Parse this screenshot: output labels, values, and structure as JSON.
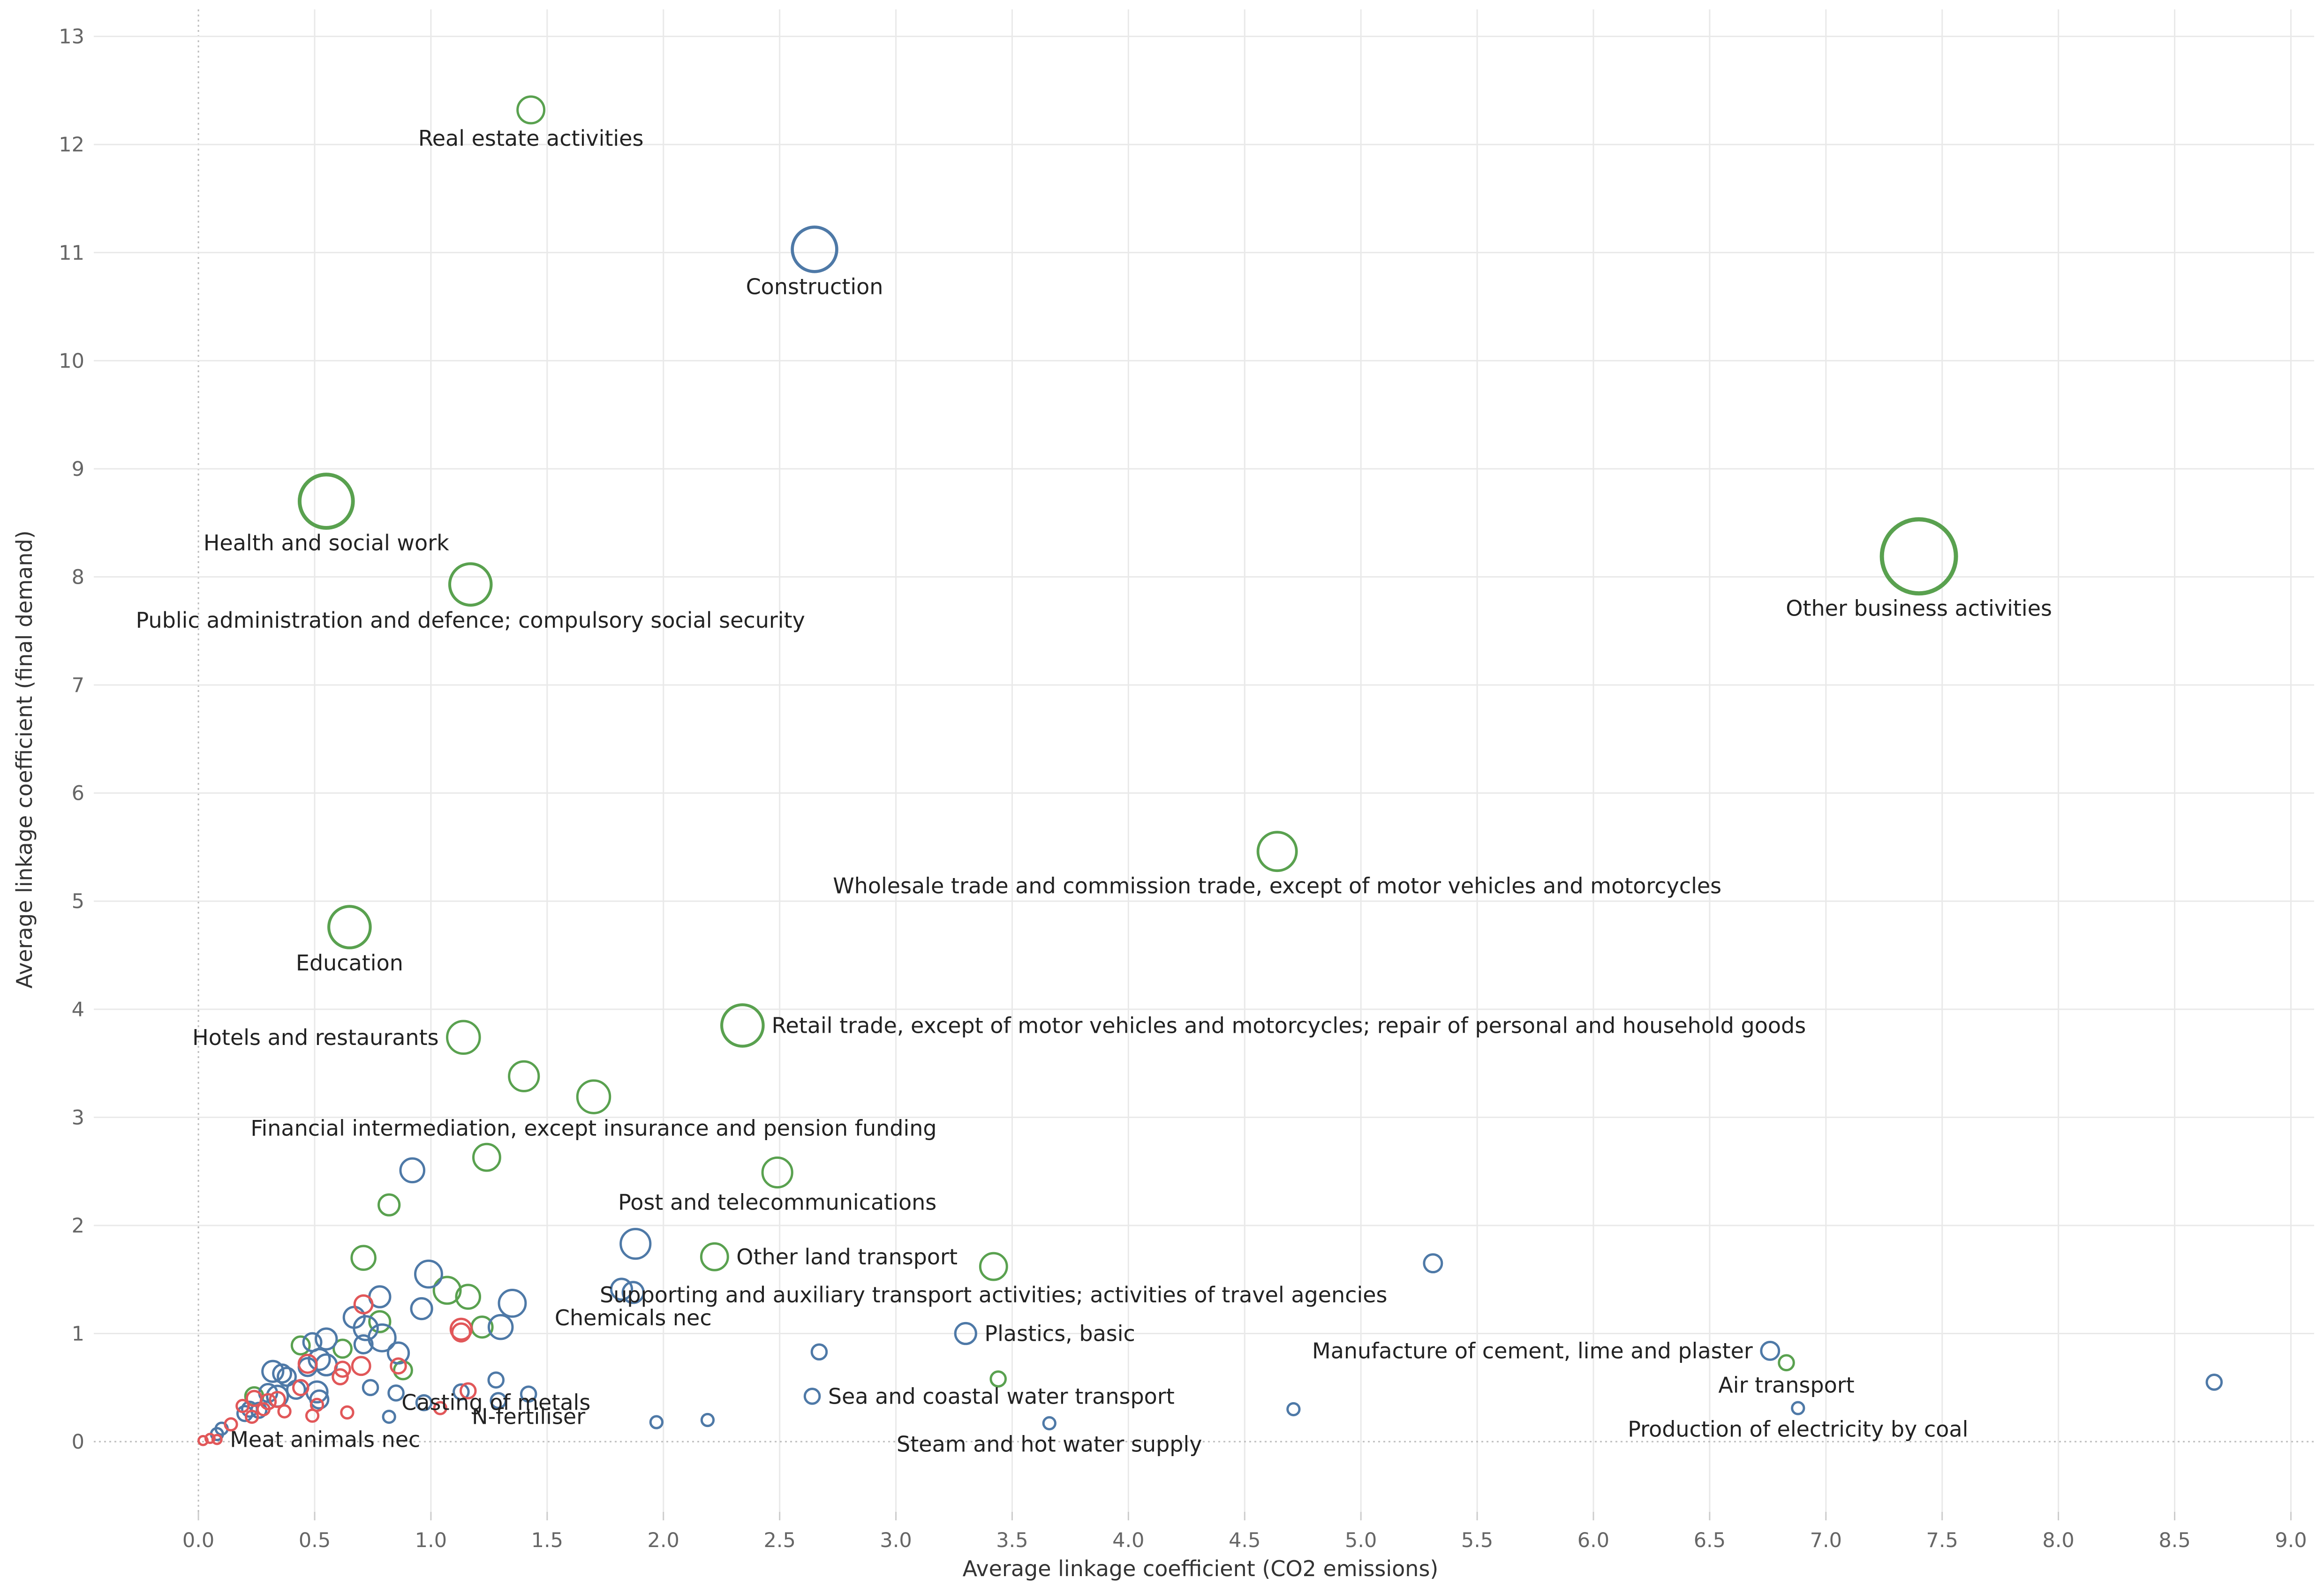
{
  "chart_data": {
    "type": "scatter",
    "title": "",
    "xlabel": "Average linkage coefficient (CO2 emissions)",
    "ylabel": "Average linkage coefficient (final demand)",
    "xlim": [
      -0.45,
      9.1
    ],
    "ylim": [
      -0.65,
      13.25
    ],
    "xticks": [
      "0.0",
      "0.5",
      "1.0",
      "1.5",
      "2.0",
      "2.5",
      "3.0",
      "3.5",
      "4.0",
      "4.5",
      "5.0",
      "5.5",
      "6.0",
      "6.5",
      "7.0",
      "7.5",
      "8.0",
      "8.5",
      "9.0"
    ],
    "yticks": [
      "0",
      "1",
      "2",
      "3",
      "4",
      "5",
      "6",
      "7",
      "8",
      "9",
      "10",
      "11",
      "12",
      "13"
    ],
    "colors": {
      "green": "#59a14f",
      "blue": "#4e79a7",
      "red": "#e15759",
      "grid": "#e9e9e9",
      "zero": "#bdbdbd"
    },
    "series": [
      {
        "name": "green",
        "points": [
          {
            "x": 1.43,
            "y": 12.32,
            "s": 9,
            "label": "Real estate activities",
            "anchor": "below"
          },
          {
            "x": 0.55,
            "y": 8.7,
            "s": 18,
            "label": "Health and social work",
            "anchor": "below"
          },
          {
            "x": 1.17,
            "y": 7.93,
            "s": 14,
            "label": "Public administration and defence; compulsory social security",
            "anchor": "below"
          },
          {
            "x": 7.4,
            "y": 8.19,
            "s": 25,
            "label": "Other business activities",
            "anchor": "below"
          },
          {
            "x": 4.64,
            "y": 5.46,
            "s": 13,
            "label": "Wholesale trade and commission trade, except of motor vehicles and motorcycles",
            "anchor": "below"
          },
          {
            "x": 0.65,
            "y": 4.76,
            "s": 14,
            "label": "Education",
            "anchor": "below"
          },
          {
            "x": 1.14,
            "y": 3.74,
            "s": 11,
            "label": "Hotels and restaurants",
            "anchor": "left"
          },
          {
            "x": 2.34,
            "y": 3.85,
            "s": 14,
            "label": "Retail trade, except of motor vehicles and motorcycles; repair of personal and household goods",
            "anchor": "right"
          },
          {
            "x": 1.4,
            "y": 3.38,
            "s": 10,
            "label": "",
            "anchor": ""
          },
          {
            "x": 1.7,
            "y": 3.19,
            "s": 11,
            "label": "Financial intermediation, except insurance and pension funding",
            "anchor": "below"
          },
          {
            "x": 1.24,
            "y": 2.63,
            "s": 9,
            "label": "",
            "anchor": ""
          },
          {
            "x": 2.49,
            "y": 2.49,
            "s": 10,
            "label": "Post and telecommunications",
            "anchor": "below"
          },
          {
            "x": 0.82,
            "y": 2.19,
            "s": 7,
            "label": "",
            "anchor": ""
          },
          {
            "x": 2.22,
            "y": 1.71,
            "s": 9,
            "label": "Other land transport",
            "anchor": "right"
          },
          {
            "x": 3.42,
            "y": 1.62,
            "s": 9,
            "label": "Supporting and auxiliary transport activities; activities of travel agencies",
            "anchor": "below"
          },
          {
            "x": 0.71,
            "y": 1.7,
            "s": 8,
            "label": "",
            "anchor": ""
          },
          {
            "x": 1.07,
            "y": 1.4,
            "s": 9,
            "label": "",
            "anchor": ""
          },
          {
            "x": 1.16,
            "y": 1.34,
            "s": 8,
            "label": "",
            "anchor": ""
          },
          {
            "x": 0.78,
            "y": 1.11,
            "s": 7,
            "label": "",
            "anchor": ""
          },
          {
            "x": 1.22,
            "y": 1.06,
            "s": 7,
            "label": "",
            "anchor": ""
          },
          {
            "x": 0.44,
            "y": 0.89,
            "s": 6,
            "label": "",
            "anchor": ""
          },
          {
            "x": 0.62,
            "y": 0.86,
            "s": 6,
            "label": "",
            "anchor": ""
          },
          {
            "x": 0.88,
            "y": 0.66,
            "s": 6,
            "label": "",
            "anchor": ""
          },
          {
            "x": 0.24,
            "y": 0.42,
            "s": 6,
            "label": "",
            "anchor": ""
          },
          {
            "x": 3.44,
            "y": 0.58,
            "s": 5,
            "label": "",
            "anchor": ""
          },
          {
            "x": 6.83,
            "y": 0.73,
            "s": 5,
            "label": "Air transport",
            "anchor": "below"
          }
        ]
      },
      {
        "name": "blue",
        "points": [
          {
            "x": 2.65,
            "y": 11.03,
            "s": 15,
            "label": "Construction",
            "anchor": "below"
          },
          {
            "x": 0.92,
            "y": 2.51,
            "s": 8,
            "label": "",
            "anchor": ""
          },
          {
            "x": 1.88,
            "y": 1.83,
            "s": 10,
            "label": "",
            "anchor": ""
          },
          {
            "x": 0.99,
            "y": 1.55,
            "s": 9,
            "label": "",
            "anchor": ""
          },
          {
            "x": 0.78,
            "y": 1.34,
            "s": 7,
            "label": "",
            "anchor": ""
          },
          {
            "x": 1.35,
            "y": 1.28,
            "s": 9,
            "label": "",
            "anchor": ""
          },
          {
            "x": 0.96,
            "y": 1.23,
            "s": 7,
            "label": "",
            "anchor": ""
          },
          {
            "x": 1.82,
            "y": 1.41,
            "s": 7,
            "label": "",
            "anchor": ""
          },
          {
            "x": 1.87,
            "y": 1.38,
            "s": 7,
            "label": "Chemicals nec",
            "anchor": "below"
          },
          {
            "x": 0.67,
            "y": 1.15,
            "s": 7,
            "label": "",
            "anchor": ""
          },
          {
            "x": 0.72,
            "y": 1.05,
            "s": 8,
            "label": "",
            "anchor": ""
          },
          {
            "x": 1.3,
            "y": 1.06,
            "s": 8,
            "label": "",
            "anchor": ""
          },
          {
            "x": 0.79,
            "y": 0.96,
            "s": 9,
            "label": "",
            "anchor": ""
          },
          {
            "x": 0.55,
            "y": 0.95,
            "s": 7,
            "label": "",
            "anchor": ""
          },
          {
            "x": 3.3,
            "y": 1.0,
            "s": 7,
            "label": "Plastics, basic",
            "anchor": "right"
          },
          {
            "x": 0.49,
            "y": 0.92,
            "s": 6,
            "label": "",
            "anchor": ""
          },
          {
            "x": 0.71,
            "y": 0.9,
            "s": 6,
            "label": "",
            "anchor": ""
          },
          {
            "x": 0.86,
            "y": 0.82,
            "s": 7,
            "label": "",
            "anchor": ""
          },
          {
            "x": 0.52,
            "y": 0.76,
            "s": 7,
            "label": "",
            "anchor": ""
          },
          {
            "x": 0.55,
            "y": 0.71,
            "s": 7,
            "label": "",
            "anchor": ""
          },
          {
            "x": 0.47,
            "y": 0.69,
            "s": 6,
            "label": "",
            "anchor": ""
          },
          {
            "x": 0.32,
            "y": 0.65,
            "s": 7,
            "label": "",
            "anchor": ""
          },
          {
            "x": 0.36,
            "y": 0.63,
            "s": 6,
            "label": "",
            "anchor": ""
          },
          {
            "x": 0.38,
            "y": 0.6,
            "s": 6,
            "label": "",
            "anchor": ""
          },
          {
            "x": 0.3,
            "y": 0.45,
            "s": 6,
            "label": "",
            "anchor": ""
          },
          {
            "x": 0.34,
            "y": 0.42,
            "s": 7,
            "label": "",
            "anchor": ""
          },
          {
            "x": 0.51,
            "y": 0.46,
            "s": 7,
            "label": "",
            "anchor": ""
          },
          {
            "x": 0.52,
            "y": 0.39,
            "s": 6,
            "label": "",
            "anchor": ""
          },
          {
            "x": 0.42,
            "y": 0.48,
            "s": 6,
            "label": "",
            "anchor": ""
          },
          {
            "x": 0.22,
            "y": 0.3,
            "s": 5,
            "label": "",
            "anchor": ""
          },
          {
            "x": 0.26,
            "y": 0.29,
            "s": 5,
            "label": "",
            "anchor": ""
          },
          {
            "x": 0.2,
            "y": 0.26,
            "s": 5,
            "label": "",
            "anchor": ""
          },
          {
            "x": 0.74,
            "y": 0.5,
            "s": 5,
            "label": "",
            "anchor": ""
          },
          {
            "x": 0.85,
            "y": 0.45,
            "s": 5,
            "label": "",
            "anchor": ""
          },
          {
            "x": 0.82,
            "y": 0.23,
            "s": 4,
            "label": "",
            "anchor": ""
          },
          {
            "x": 0.97,
            "y": 0.36,
            "s": 5,
            "label": "",
            "anchor": ""
          },
          {
            "x": 1.28,
            "y": 0.57,
            "s": 5,
            "label": "Casting of metals",
            "anchor": "below"
          },
          {
            "x": 1.29,
            "y": 0.38,
            "s": 5,
            "label": "",
            "anchor": ""
          },
          {
            "x": 1.13,
            "y": 0.46,
            "s": 5,
            "label": "",
            "anchor": ""
          },
          {
            "x": 1.42,
            "y": 0.44,
            "s": 5,
            "label": "N-fertiliser",
            "anchor": "below"
          },
          {
            "x": 2.67,
            "y": 0.83,
            "s": 5,
            "label": "",
            "anchor": ""
          },
          {
            "x": 2.64,
            "y": 0.42,
            "s": 5,
            "label": "Sea and coastal water transport",
            "anchor": "right"
          },
          {
            "x": 1.97,
            "y": 0.18,
            "s": 4,
            "label": "",
            "anchor": ""
          },
          {
            "x": 2.19,
            "y": 0.2,
            "s": 4,
            "label": "",
            "anchor": ""
          },
          {
            "x": 3.66,
            "y": 0.17,
            "s": 4,
            "label": "Steam and hot water supply",
            "anchor": "below"
          },
          {
            "x": 4.71,
            "y": 0.3,
            "s": 4,
            "label": "",
            "anchor": ""
          },
          {
            "x": 5.31,
            "y": 1.65,
            "s": 6,
            "label": "",
            "anchor": ""
          },
          {
            "x": 6.76,
            "y": 0.84,
            "s": 6,
            "label": "Manufacture of cement, lime and plaster",
            "anchor": "left"
          },
          {
            "x": 6.88,
            "y": 0.31,
            "s": 4,
            "label": "Production of electricity by coal",
            "anchor": "below"
          },
          {
            "x": 8.67,
            "y": 0.55,
            "s": 5,
            "label": "",
            "anchor": ""
          },
          {
            "x": 0.1,
            "y": 0.12,
            "s": 4,
            "label": "",
            "anchor": ""
          },
          {
            "x": 0.08,
            "y": 0.07,
            "s": 4,
            "label": "",
            "anchor": ""
          }
        ]
      },
      {
        "name": "red",
        "points": [
          {
            "x": 0.71,
            "y": 1.27,
            "s": 6,
            "label": "",
            "anchor": ""
          },
          {
            "x": 1.13,
            "y": 1.04,
            "s": 7,
            "label": "",
            "anchor": ""
          },
          {
            "x": 1.13,
            "y": 1.01,
            "s": 6,
            "label": "",
            "anchor": ""
          },
          {
            "x": 0.47,
            "y": 0.72,
            "s": 6,
            "label": "",
            "anchor": ""
          },
          {
            "x": 0.7,
            "y": 0.7,
            "s": 6,
            "label": "",
            "anchor": ""
          },
          {
            "x": 0.62,
            "y": 0.67,
            "s": 5,
            "label": "",
            "anchor": ""
          },
          {
            "x": 0.86,
            "y": 0.7,
            "s": 5,
            "label": "",
            "anchor": ""
          },
          {
            "x": 0.61,
            "y": 0.6,
            "s": 5,
            "label": "",
            "anchor": ""
          },
          {
            "x": 0.44,
            "y": 0.5,
            "s": 5,
            "label": "",
            "anchor": ""
          },
          {
            "x": 0.24,
            "y": 0.4,
            "s": 5,
            "label": "",
            "anchor": ""
          },
          {
            "x": 0.3,
            "y": 0.37,
            "s": 5,
            "label": "",
            "anchor": ""
          },
          {
            "x": 0.34,
            "y": 0.39,
            "s": 5,
            "label": "",
            "anchor": ""
          },
          {
            "x": 0.19,
            "y": 0.33,
            "s": 4,
            "label": "",
            "anchor": ""
          },
          {
            "x": 0.28,
            "y": 0.3,
            "s": 4,
            "label": "",
            "anchor": ""
          },
          {
            "x": 0.37,
            "y": 0.28,
            "s": 4,
            "label": "",
            "anchor": ""
          },
          {
            "x": 0.51,
            "y": 0.34,
            "s": 4,
            "label": "",
            "anchor": ""
          },
          {
            "x": 0.49,
            "y": 0.24,
            "s": 4,
            "label": "",
            "anchor": ""
          },
          {
            "x": 0.64,
            "y": 0.27,
            "s": 4,
            "label": "",
            "anchor": ""
          },
          {
            "x": 1.04,
            "y": 0.31,
            "s": 4,
            "label": "",
            "anchor": ""
          },
          {
            "x": 1.16,
            "y": 0.47,
            "s": 5,
            "label": "",
            "anchor": ""
          },
          {
            "x": 0.23,
            "y": 0.23,
            "s": 4,
            "label": "",
            "anchor": ""
          },
          {
            "x": 0.14,
            "y": 0.16,
            "s": 4,
            "label": "",
            "anchor": ""
          },
          {
            "x": 0.05,
            "y": 0.03,
            "s": 3,
            "label": "",
            "anchor": ""
          },
          {
            "x": 0.02,
            "y": 0.01,
            "s": 3,
            "label": "",
            "anchor": ""
          },
          {
            "x": 0.08,
            "y": 0.02,
            "s": 3,
            "label": "Meat animals nec",
            "anchor": "right"
          }
        ]
      }
    ]
  }
}
